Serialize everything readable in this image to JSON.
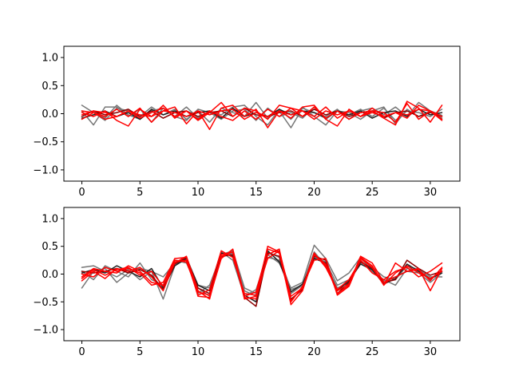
{
  "chart_data": [
    {
      "type": "line",
      "title": "",
      "xlabel": "",
      "ylabel": "",
      "xlim": [
        -1.55,
        32.55
      ],
      "ylim": [
        -1.2,
        1.2
      ],
      "xticks": [
        0,
        5,
        10,
        15,
        20,
        25,
        30
      ],
      "yticks": [
        -1.0,
        -0.5,
        0.0,
        0.5,
        1.0
      ],
      "xtick_labels": [
        "0",
        "5",
        "10",
        "15",
        "20",
        "25",
        "30"
      ],
      "ytick_labels": [
        "−1.0",
        "−0.5",
        "0.0",
        "0.5",
        "1.0"
      ],
      "grid": false,
      "series": [
        {
          "color": "#777777",
          "values": [
            0.15,
            0.02,
            -0.12,
            0.1,
            0.05,
            -0.05,
            0.12,
            -0.02,
            0.08,
            -0.1,
            0.05,
            -0.15,
            0.1,
            0.02,
            -0.05,
            0.2,
            -0.08,
            0.05,
            -0.25,
            0.1,
            0.02,
            -0.05,
            0.08,
            -0.1,
            0.05,
            0.1,
            -0.02,
            0.12,
            -0.05,
            0.2,
            0.05,
            -0.03
          ]
        },
        {
          "color": "#777777",
          "values": [
            0.05,
            -0.2,
            0.12,
            0.12,
            -0.05,
            0.08,
            -0.15,
            0.1,
            -0.05,
            0.12,
            -0.08,
            0.05,
            -0.02,
            0.12,
            0.15,
            -0.05,
            -0.2,
            0.08,
            -0.1,
            0.12,
            -0.05,
            -0.2,
            0.05,
            0.02,
            -0.1,
            0.05,
            0.12,
            -0.18,
            0.08,
            -0.05,
            0.05,
            -0.08
          ]
        },
        {
          "color": "#777777",
          "values": [
            -0.05,
            0.05,
            -0.08,
            0.15,
            -0.02,
            -0.1,
            0.05,
            0.1,
            -0.05,
            -0.12,
            0.08,
            0.02,
            -0.1,
            0.05,
            0.08,
            -0.12,
            0.1,
            -0.05,
            0.02,
            -0.08,
            0.12,
            -0.1,
            0.05,
            -0.02,
            0.08,
            -0.05,
            0.1,
            -0.12,
            0.05,
            0.02,
            -0.05,
            0.08
          ]
        },
        {
          "color": "#222222",
          "values": [
            -0.08,
            -0.02,
            0.05,
            -0.05,
            0.02,
            -0.1,
            0.08,
            -0.02,
            0.05,
            -0.05,
            0.02,
            0.05,
            -0.08,
            0.1,
            -0.05,
            0.02,
            -0.05,
            0.08,
            -0.02,
            0.05,
            0.02,
            -0.08,
            0.05,
            -0.02,
            0.05,
            -0.08,
            0.02,
            0.05,
            -0.05,
            0.08,
            -0.02,
            0.02
          ]
        },
        {
          "color": "#8b0000",
          "values": [
            -0.05,
            0.05,
            -0.02,
            0.02,
            0.08,
            -0.05,
            0.05,
            -0.08,
            0.02,
            0.05,
            -0.05,
            0.02,
            0.05,
            -0.05,
            0.1,
            -0.02,
            -0.05,
            0.02,
            0.05,
            -0.05,
            0.08,
            -0.02,
            0.05,
            -0.05,
            0.02,
            0.05,
            -0.08,
            0.02,
            0.05,
            -0.05,
            0.02,
            -0.05
          ]
        },
        {
          "color": "#ff0000",
          "values": [
            0.02,
            -0.05,
            0.05,
            -0.12,
            -0.22,
            0.08,
            -0.05,
            0.15,
            -0.08,
            0.05,
            -0.12,
            0.02,
            0.2,
            -0.05,
            0.1,
            0.05,
            -0.1,
            0.15,
            0.1,
            -0.05,
            0.12,
            -0.08,
            0.05,
            -0.1,
            0.02,
            0.05,
            -0.08,
            -0.2,
            0.22,
            0.1,
            -0.15,
            0.15
          ]
        },
        {
          "color": "#ff0000",
          "values": [
            -0.1,
            0.02,
            -0.05,
            0.08,
            -0.05,
            0.1,
            -0.15,
            0.05,
            0.12,
            -0.18,
            0.05,
            -0.28,
            0.1,
            0.15,
            -0.05,
            0.08,
            -0.25,
            0.05,
            -0.08,
            0.12,
            0.15,
            -0.1,
            -0.22,
            0.08,
            -0.05,
            0.05,
            0.02,
            -0.15,
            0.18,
            -0.1,
            0.05,
            -0.12
          ]
        },
        {
          "color": "#ff0000",
          "values": [
            0.05,
            0.02,
            -0.1,
            -0.05,
            0.05,
            -0.08,
            0.02,
            0.1,
            -0.05,
            0.05,
            -0.1,
            0.05,
            -0.05,
            -0.12,
            0.05,
            -0.1,
            0.08,
            -0.05,
            0.1,
            0.05,
            -0.05,
            0.12,
            -0.08,
            0.05,
            -0.05,
            0.1,
            -0.05,
            0.02,
            -0.08,
            0.15,
            0.05,
            -0.1
          ]
        },
        {
          "color": "#ff0000",
          "values": [
            -0.02,
            0.05,
            0.02,
            -0.05,
            0.05,
            -0.02,
            -0.05,
            0.05,
            0.02,
            -0.05,
            0.05,
            -0.02,
            0.05,
            0.08,
            -0.1,
            0.02,
            -0.05,
            0.05,
            -0.02,
            0.05,
            -0.1,
            0.05,
            -0.02,
            0.05,
            -0.05,
            0.02,
            -0.05,
            0.02,
            -0.02,
            0.08,
            0.05,
            -0.05
          ]
        }
      ]
    },
    {
      "type": "line",
      "title": "",
      "xlabel": "",
      "ylabel": "",
      "xlim": [
        -1.55,
        32.55
      ],
      "ylim": [
        -1.2,
        1.2
      ],
      "xticks": [
        0,
        5,
        10,
        15,
        20,
        25,
        30
      ],
      "yticks": [
        -1.0,
        -0.5,
        0.0,
        0.5,
        1.0
      ],
      "xtick_labels": [
        "0",
        "5",
        "10",
        "15",
        "20",
        "25",
        "30"
      ],
      "ytick_labels": [
        "−1.0",
        "−0.5",
        "0.0",
        "0.5",
        "1.0"
      ],
      "grid": false,
      "series": [
        {
          "color": "#777777",
          "values": [
            0.12,
            0.15,
            0.05,
            -0.05,
            0.08,
            -0.1,
            0.05,
            -0.45,
            0.15,
            0.3,
            -0.2,
            -0.25,
            0.4,
            0.25,
            -0.4,
            -0.28,
            0.35,
            0.2,
            -0.25,
            -0.15,
            0.52,
            0.28,
            -0.12,
            0.02,
            0.3,
            0.05,
            -0.1,
            -0.2,
            0.1,
            0.05,
            -0.1,
            0.05
          ]
        },
        {
          "color": "#777777",
          "values": [
            -0.25,
            0.05,
            0.1,
            -0.15,
            0.02,
            0.1,
            0.05,
            -0.05,
            0.2,
            0.25,
            -0.35,
            -0.2,
            0.35,
            0.42,
            -0.25,
            -0.35,
            0.3,
            0.25,
            -0.35,
            -0.2,
            0.4,
            0.15,
            -0.25,
            -0.15,
            0.25,
            0.05,
            -0.12,
            -0.05,
            0.05,
            0.02,
            -0.15,
            0.02
          ]
        },
        {
          "color": "#777777",
          "values": [
            0.05,
            -0.1,
            0.15,
            0.05,
            -0.05,
            0.2,
            -0.1,
            -0.2,
            0.25,
            0.2,
            -0.25,
            -0.4,
            0.3,
            0.38,
            -0.3,
            -0.4,
            0.4,
            0.3,
            -0.28,
            -0.2,
            0.3,
            0.22,
            -0.2,
            -0.1,
            0.2,
            0.12,
            -0.05,
            -0.1,
            0.15,
            0.08,
            -0.05,
            -0.05
          ]
        },
        {
          "color": "#222222",
          "values": [
            0.02,
            0.08,
            0.02,
            0.15,
            0.05,
            -0.05,
            0.1,
            -0.25,
            0.15,
            0.28,
            -0.2,
            -0.3,
            0.38,
            0.32,
            -0.38,
            -0.5,
            0.42,
            0.22,
            -0.32,
            -0.18,
            0.28,
            0.2,
            -0.3,
            -0.12,
            0.18,
            0.08,
            -0.18,
            -0.08,
            0.18,
            0.05,
            -0.08,
            0.02
          ]
        },
        {
          "color": "#8b0000",
          "values": [
            0.05,
            0.02,
            0.05,
            0.1,
            0.02,
            0.08,
            -0.02,
            -0.28,
            0.18,
            0.3,
            -0.25,
            -0.35,
            0.32,
            0.35,
            -0.42,
            -0.58,
            0.38,
            0.32,
            -0.45,
            -0.28,
            0.32,
            0.25,
            -0.35,
            -0.15,
            0.22,
            0.1,
            -0.15,
            -0.1,
            0.25,
            0.1,
            -0.02,
            0.05
          ]
        },
        {
          "color": "#ff0000",
          "values": [
            -0.05,
            0.1,
            0.05,
            0.02,
            0.15,
            0.05,
            -0.15,
            -0.2,
            0.2,
            0.32,
            -0.3,
            -0.45,
            0.35,
            0.4,
            -0.45,
            -0.4,
            0.5,
            0.4,
            -0.55,
            -0.3,
            0.35,
            0.18,
            -0.35,
            -0.2,
            0.3,
            0.15,
            -0.2,
            0.2,
            0.05,
            0.1,
            -0.3,
            0.1
          ]
        },
        {
          "color": "#ff0000",
          "values": [
            -0.12,
            0.05,
            -0.08,
            0.1,
            0.05,
            0.12,
            -0.05,
            -0.3,
            0.22,
            0.25,
            -0.38,
            -0.28,
            0.42,
            0.3,
            -0.35,
            -0.38,
            0.28,
            0.42,
            -0.4,
            -0.25,
            0.38,
            0.12,
            -0.28,
            -0.1,
            0.25,
            0.02,
            -0.1,
            0.05,
            0.12,
            -0.05,
            0.05,
            0.2
          ]
        },
        {
          "color": "#ff0000",
          "values": [
            0.0,
            -0.05,
            0.12,
            0.05,
            0.1,
            0.02,
            -0.2,
            -0.15,
            0.28,
            0.3,
            -0.4,
            -0.42,
            0.28,
            0.45,
            -0.4,
            -0.32,
            0.45,
            0.38,
            -0.48,
            -0.25,
            0.35,
            0.15,
            -0.3,
            -0.18,
            0.32,
            0.2,
            -0.15,
            -0.05,
            0.05,
            0.08,
            -0.12,
            0.12
          ]
        },
        {
          "color": "#ff0000",
          "values": [
            -0.08,
            0.08,
            -0.02,
            0.08,
            0.12,
            -0.02,
            0.05,
            -0.22,
            0.25,
            0.22,
            -0.32,
            -0.38,
            0.32,
            0.4,
            -0.42,
            -0.45,
            0.35,
            0.45,
            -0.5,
            -0.22,
            0.25,
            0.28,
            -0.38,
            -0.22,
            0.28,
            0.12,
            -0.2,
            0.02,
            0.15,
            0.02,
            -0.08,
            0.05
          ]
        }
      ]
    }
  ]
}
